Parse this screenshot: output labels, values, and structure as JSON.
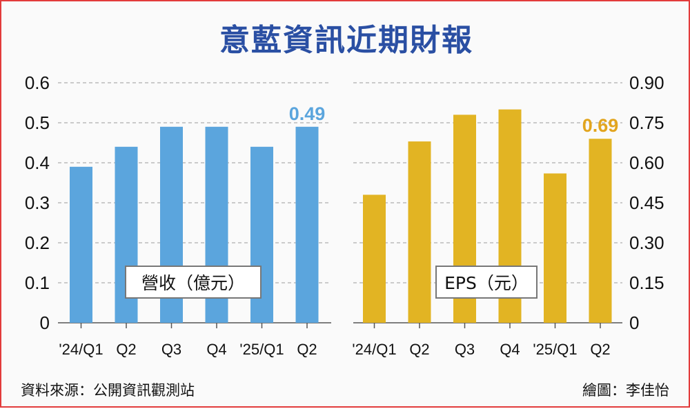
{
  "title": "意藍資訊近期財報",
  "source": "資料來源：公開資訊觀測站",
  "credit": "繪圖：李佳怡",
  "chart_data": [
    {
      "type": "bar",
      "legend_label": "營收（億元）",
      "categories": [
        "'24/Q1",
        "Q2",
        "Q3",
        "Q4",
        "'25/Q1",
        "Q2"
      ],
      "values": [
        0.39,
        0.44,
        0.49,
        0.49,
        0.44,
        0.49
      ],
      "ylim": [
        0,
        0.6
      ],
      "yticks": [
        "0",
        "0.1",
        "0.2",
        "0.3",
        "0.4",
        "0.5",
        "0.6"
      ],
      "ytick_values": [
        0,
        0.1,
        0.2,
        0.3,
        0.4,
        0.5,
        0.6
      ],
      "axis_side": "left",
      "color": "#5ba5dd",
      "highlight": {
        "index": 5,
        "label": "0.49",
        "color": "#5ba5dd"
      },
      "grid": true
    },
    {
      "type": "bar",
      "legend_label": "EPS（元）",
      "categories": [
        "'24/Q1",
        "Q2",
        "Q3",
        "Q4",
        "'25/Q1",
        "Q2"
      ],
      "values": [
        0.48,
        0.68,
        0.78,
        0.8,
        0.56,
        0.69
      ],
      "ylim": [
        0,
        0.9
      ],
      "yticks": [
        "0",
        "0.15",
        "0.30",
        "0.45",
        "0.60",
        "0.75",
        "0.90"
      ],
      "ytick_values": [
        0,
        0.15,
        0.3,
        0.45,
        0.6,
        0.75,
        0.9
      ],
      "axis_side": "right",
      "color": "#e2b423",
      "highlight": {
        "index": 5,
        "label": "0.69",
        "color": "#e2a51e"
      },
      "grid": true
    }
  ]
}
